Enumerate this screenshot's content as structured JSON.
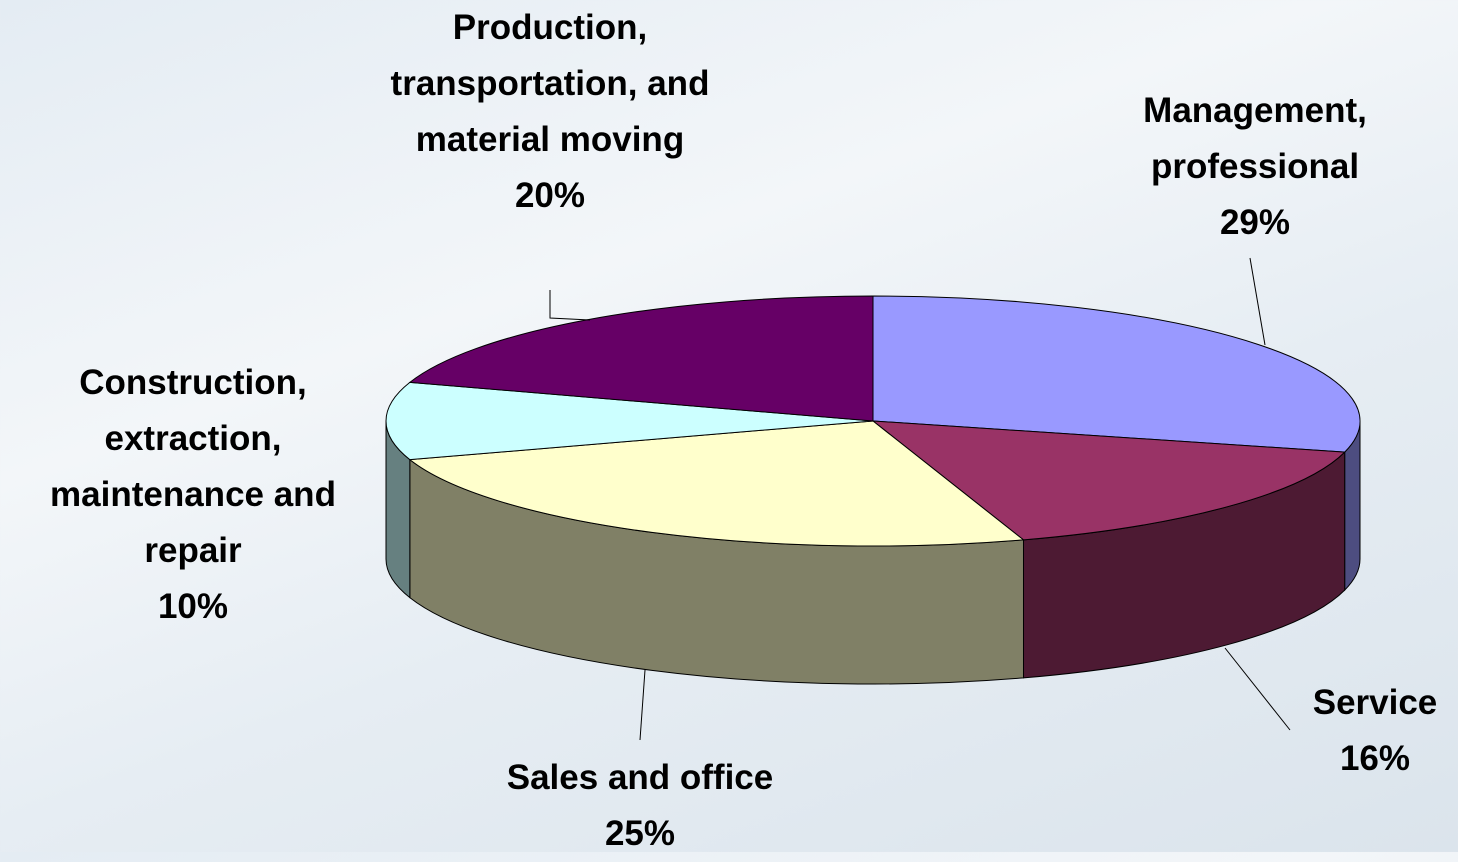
{
  "chart_data": {
    "type": "pie3d",
    "categories": [
      "Management, professional",
      "Service",
      "Sales and office",
      "Construction, extraction, maintenance and repair",
      "Production, transportation, and material moving"
    ],
    "values": [
      29,
      16,
      25,
      10,
      20
    ],
    "value_labels": [
      "29%",
      "16%",
      "25%",
      "10%",
      "20%"
    ],
    "colors": [
      "#9999ff",
      "#993366",
      "#ffffcc",
      "#ccffff",
      "#660066"
    ]
  }
}
